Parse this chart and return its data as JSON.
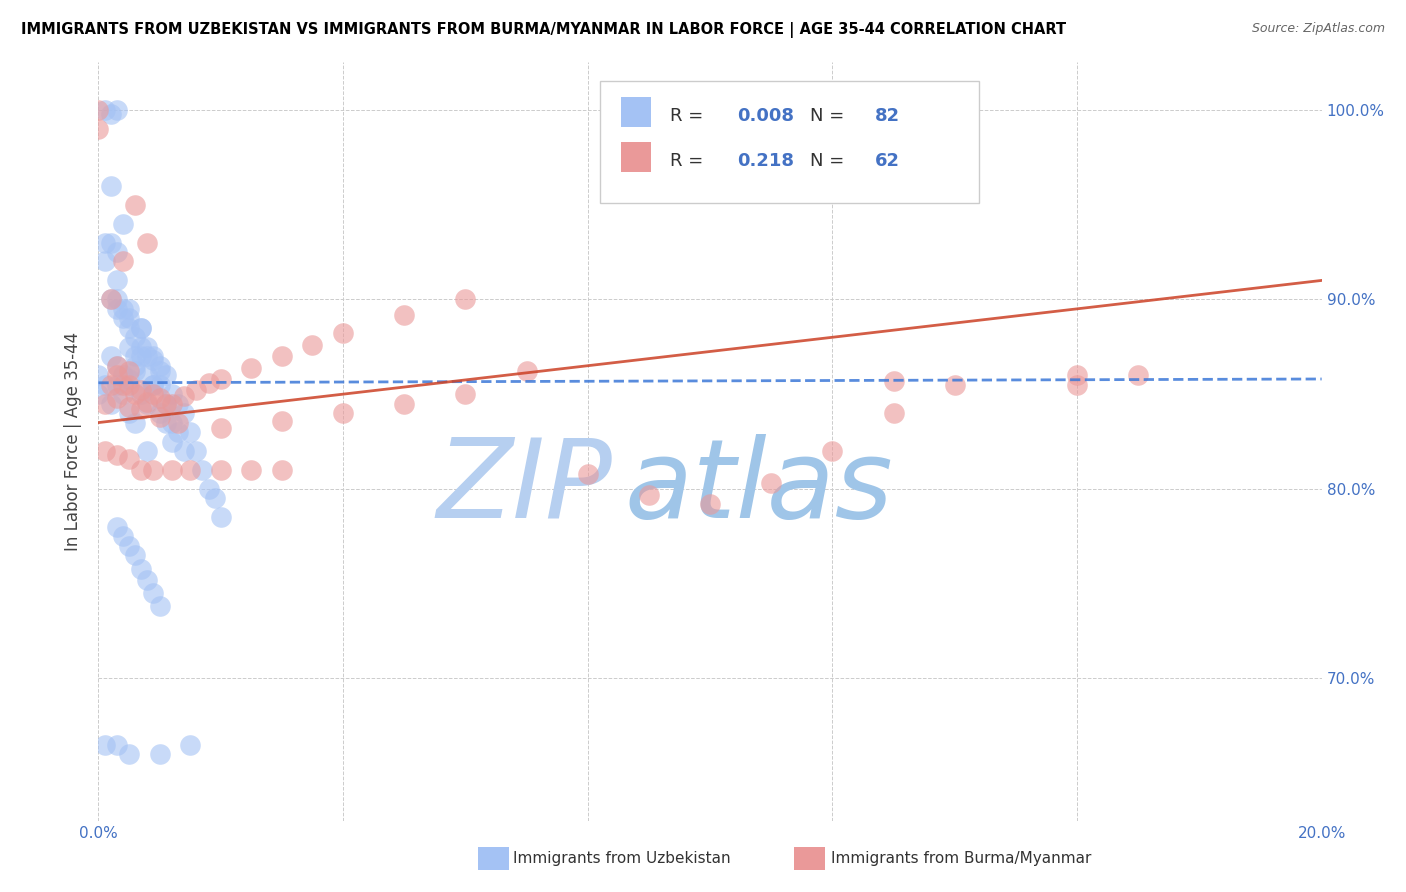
{
  "title": "IMMIGRANTS FROM UZBEKISTAN VS IMMIGRANTS FROM BURMA/MYANMAR IN LABOR FORCE | AGE 35-44 CORRELATION CHART",
  "source": "Source: ZipAtlas.com",
  "ylabel": "In Labor Force | Age 35-44",
  "xlim": [
    0.0,
    0.2
  ],
  "ylim": [
    0.625,
    1.025
  ],
  "xtick_vals": [
    0.0,
    0.04,
    0.08,
    0.12,
    0.16,
    0.2
  ],
  "xticklabels": [
    "0.0%",
    "",
    "",
    "",
    "",
    "20.0%"
  ],
  "ytick_vals": [
    0.7,
    0.8,
    0.9,
    1.0
  ],
  "yticklabels": [
    "70.0%",
    "80.0%",
    "90.0%",
    "100.0%"
  ],
  "blue_color": "#a4c2f4",
  "pink_color": "#ea9999",
  "blue_scatter_edge": "#a4c2f4",
  "pink_scatter_edge": "#ea9999",
  "blue_line_color": "#3c78d8",
  "pink_line_color": "#cc4125",
  "watermark_zip_color": "#b6cff0",
  "watermark_atlas_color": "#9fc5e8",
  "grid_color": "#cccccc",
  "title_color": "#000000",
  "source_color": "#666666",
  "tick_color": "#4472c4",
  "ylabel_color": "#444444",
  "legend_R1": "0.008",
  "legend_N1": "82",
  "legend_R2": "0.218",
  "legend_N2": "62",
  "blue_line_y0": 0.856,
  "blue_line_y1": 0.858,
  "pink_line_y0": 0.835,
  "pink_line_y1": 0.91,
  "uz_x": [
    0.001,
    0.001,
    0.002,
    0.002,
    0.003,
    0.003,
    0.003,
    0.004,
    0.004,
    0.005,
    0.005,
    0.005,
    0.006,
    0.006,
    0.007,
    0.007,
    0.008,
    0.008,
    0.009,
    0.009,
    0.01,
    0.01,
    0.011,
    0.011,
    0.012,
    0.012,
    0.013,
    0.013,
    0.014,
    0.014,
    0.015,
    0.016,
    0.017,
    0.018,
    0.019,
    0.02,
    0.0,
    0.0,
    0.001,
    0.002,
    0.003,
    0.004,
    0.005,
    0.006,
    0.007,
    0.008,
    0.009,
    0.01,
    0.011,
    0.012,
    0.002,
    0.003,
    0.004,
    0.005,
    0.006,
    0.002,
    0.003,
    0.004,
    0.005,
    0.006,
    0.007,
    0.001,
    0.002,
    0.003,
    0.007,
    0.008,
    0.009,
    0.01,
    0.003,
    0.004,
    0.005,
    0.006,
    0.007,
    0.008,
    0.009,
    0.01,
    0.008,
    0.001,
    0.003,
    0.005,
    0.015,
    0.01
  ],
  "uz_y": [
    0.93,
    0.92,
    0.93,
    0.96,
    0.925,
    0.91,
    0.9,
    0.895,
    0.94,
    0.885,
    0.875,
    0.89,
    0.87,
    0.865,
    0.87,
    0.885,
    0.86,
    0.875,
    0.87,
    0.855,
    0.865,
    0.855,
    0.86,
    0.845,
    0.85,
    0.835,
    0.845,
    0.83,
    0.84,
    0.82,
    0.83,
    0.82,
    0.81,
    0.8,
    0.795,
    0.785,
    0.85,
    0.86,
    0.855,
    0.845,
    0.855,
    0.85,
    0.84,
    0.835,
    0.85,
    0.845,
    0.855,
    0.84,
    0.835,
    0.825,
    0.87,
    0.865,
    0.86,
    0.858,
    0.862,
    0.9,
    0.895,
    0.89,
    0.895,
    0.88,
    0.885,
    1.0,
    0.998,
    1.0,
    0.875,
    0.87,
    0.868,
    0.862,
    0.78,
    0.775,
    0.77,
    0.765,
    0.758,
    0.752,
    0.745,
    0.738,
    0.82,
    0.665,
    0.665,
    0.66,
    0.665,
    0.66
  ],
  "bm_x": [
    0.0,
    0.0,
    0.001,
    0.002,
    0.003,
    0.003,
    0.004,
    0.005,
    0.005,
    0.006,
    0.007,
    0.008,
    0.009,
    0.01,
    0.011,
    0.012,
    0.014,
    0.016,
    0.018,
    0.02,
    0.025,
    0.03,
    0.035,
    0.04,
    0.05,
    0.06,
    0.07,
    0.08,
    0.09,
    0.1,
    0.11,
    0.12,
    0.13,
    0.14,
    0.16,
    0.17,
    0.003,
    0.005,
    0.007,
    0.01,
    0.013,
    0.02,
    0.03,
    0.04,
    0.05,
    0.06,
    0.002,
    0.004,
    0.006,
    0.008,
    0.13,
    0.001,
    0.003,
    0.005,
    0.007,
    0.009,
    0.012,
    0.015,
    0.02,
    0.025,
    0.03,
    0.16
  ],
  "bm_y": [
    1.0,
    0.99,
    0.845,
    0.855,
    0.848,
    0.865,
    0.855,
    0.855,
    0.843,
    0.85,
    0.852,
    0.846,
    0.85,
    0.848,
    0.845,
    0.845,
    0.849,
    0.852,
    0.856,
    0.858,
    0.864,
    0.87,
    0.876,
    0.882,
    0.892,
    0.9,
    0.862,
    0.808,
    0.797,
    0.792,
    0.803,
    0.82,
    0.84,
    0.855,
    0.86,
    0.86,
    0.86,
    0.862,
    0.842,
    0.838,
    0.835,
    0.832,
    0.836,
    0.84,
    0.845,
    0.85,
    0.9,
    0.92,
    0.95,
    0.93,
    0.857,
    0.82,
    0.818,
    0.816,
    0.81,
    0.81,
    0.81,
    0.81,
    0.81,
    0.81,
    0.81,
    0.855
  ]
}
